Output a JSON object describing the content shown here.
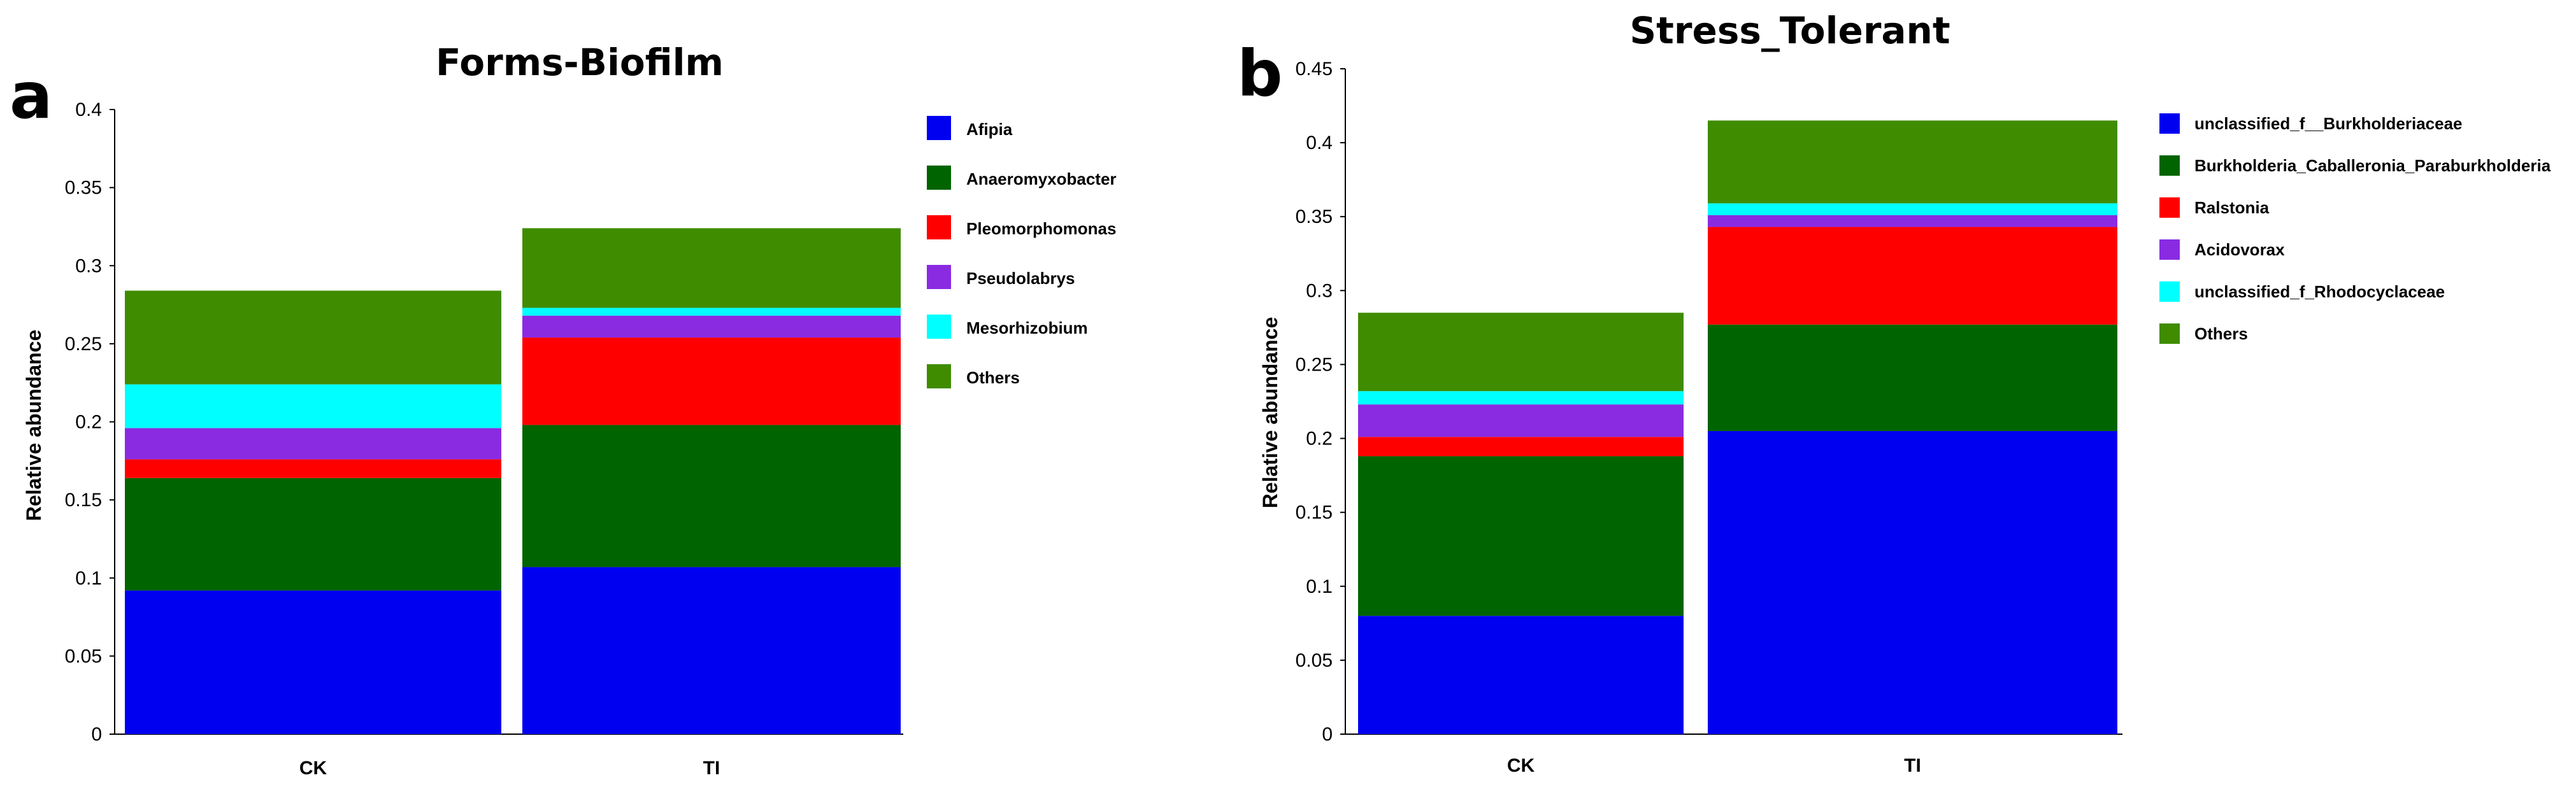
{
  "chart_data": [
    {
      "panel": "a",
      "type": "bar",
      "stacked": true,
      "title": "Forms-Biofilm",
      "xlabel": "",
      "ylabel": "Relative abundance",
      "ylim": [
        0,
        0.4
      ],
      "yticks": [
        "0",
        "0.05",
        "0.1",
        "0.15",
        "0.2",
        "0.25",
        "0.3",
        "0.35",
        "0.4"
      ],
      "categories": [
        "CK",
        "TI"
      ],
      "legend_position": "right",
      "series": [
        {
          "name": "Afipia",
          "color": "#0000f0",
          "values": [
            0.092,
            0.107
          ]
        },
        {
          "name": "Anaeromyxobacter",
          "color": "#006400",
          "values": [
            0.072,
            0.091
          ]
        },
        {
          "name": "Pleomorphomonas",
          "color": "#ff0000",
          "values": [
            0.012,
            0.056
          ]
        },
        {
          "name": "Pseudolabrys",
          "color": "#8a2be2",
          "values": [
            0.02,
            0.014
          ]
        },
        {
          "name": "Mesorhizobium",
          "color": "#00ffff",
          "values": [
            0.028,
            0.005
          ]
        },
        {
          "name": "Others",
          "color": "#3f8c00",
          "values": [
            0.06,
            0.051
          ]
        }
      ]
    },
    {
      "panel": "b",
      "type": "bar",
      "stacked": true,
      "title": "Stress_Tolerant",
      "xlabel": "",
      "ylabel": "Relative abundance",
      "ylim": [
        0,
        0.45
      ],
      "yticks": [
        "0",
        "0.05",
        "0.1",
        "0.15",
        "0.2",
        "0.25",
        "0.3",
        "0.35",
        "0.4",
        "0.45"
      ],
      "categories": [
        "CK",
        "TI"
      ],
      "legend_position": "right",
      "series": [
        {
          "name": "unclassified_f__Burkholderiaceae",
          "color": "#0000f0",
          "values": [
            0.08,
            0.205
          ]
        },
        {
          "name": "Burkholderia_Caballeronia_Paraburkholderia",
          "color": "#006400",
          "values": [
            0.108,
            0.072
          ]
        },
        {
          "name": "Ralstonia",
          "color": "#ff0000",
          "values": [
            0.013,
            0.066
          ]
        },
        {
          "name": "Acidovorax",
          "color": "#8a2be2",
          "values": [
            0.022,
            0.008
          ]
        },
        {
          "name": "unclassified_f_Rhodocyclaceae",
          "color": "#00ffff",
          "values": [
            0.009,
            0.008
          ]
        },
        {
          "name": "Others",
          "color": "#3f8c00",
          "values": [
            0.053,
            0.056
          ]
        }
      ]
    }
  ]
}
